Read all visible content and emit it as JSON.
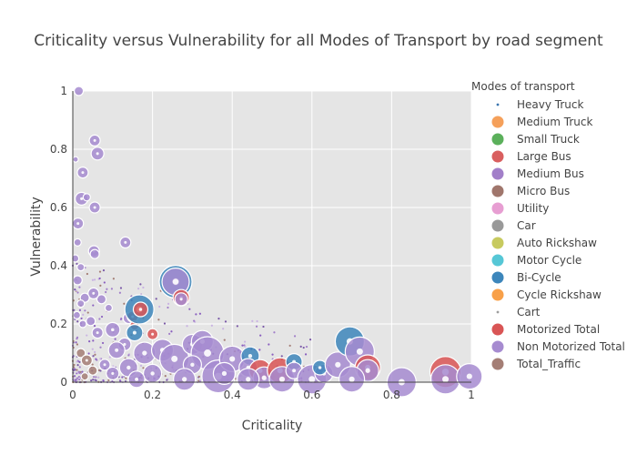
{
  "chart_data": {
    "type": "scatter",
    "title": "Criticality versus Vulnerability for all Modes of Transport by road segment",
    "xlabel": "Criticality",
    "ylabel": "Vulnerability",
    "xlim": [
      0,
      1
    ],
    "ylim": [
      0,
      1
    ],
    "xticks": [
      0,
      0.2,
      0.4,
      0.6,
      0.8,
      1
    ],
    "xtick_labels": [
      "0",
      "0.2",
      "0.4",
      "0.6",
      "0.8",
      "1"
    ],
    "yticks": [
      0,
      0.2,
      0.4,
      0.6,
      0.8,
      1
    ],
    "ytick_labels": [
      "0",
      "0.2",
      "0.4",
      "0.6",
      "0.8",
      "1"
    ],
    "grid": true,
    "legend_title": "Modes of transport",
    "legend_position": "right",
    "series": [
      {
        "name": "Heavy Truck",
        "color": "#3b75af",
        "marker": "dot"
      },
      {
        "name": "Medium Truck",
        "color": "#f5a05a",
        "marker": "circle"
      },
      {
        "name": "Small Truck",
        "color": "#5bb05b",
        "marker": "circle"
      },
      {
        "name": "Large Bus",
        "color": "#d95f5f",
        "marker": "circle"
      },
      {
        "name": "Medium Bus",
        "color": "#a27fc9",
        "marker": "circle"
      },
      {
        "name": "Micro Bus",
        "color": "#a0766c",
        "marker": "circle"
      },
      {
        "name": "Utility",
        "color": "#e79ed2",
        "marker": "circle"
      },
      {
        "name": "Car",
        "color": "#999999",
        "marker": "circle"
      },
      {
        "name": "Auto Rickshaw",
        "color": "#c7ca5f",
        "marker": "circle"
      },
      {
        "name": "Motor Cycle",
        "color": "#56c7d6",
        "marker": "circle"
      },
      {
        "name": "Bi-Cycle",
        "color": "#3d86bb",
        "marker": "circle"
      },
      {
        "name": "Cycle Rickshaw",
        "color": "#f8a049",
        "marker": "circle"
      },
      {
        "name": "Cart",
        "color": "#9e9e9e",
        "marker": "dot"
      },
      {
        "name": "Motorized Total",
        "color": "#d95555",
        "marker": "circle"
      },
      {
        "name": "Non Motorized Total",
        "color": "#a68bd0",
        "marker": "circle"
      },
      {
        "name": "Total_Traffic",
        "color": "#a47e75",
        "marker": "circle"
      }
    ],
    "points": [
      {
        "s": 14,
        "x": 0.015,
        "y": 1.0,
        "r": 5
      },
      {
        "s": 14,
        "x": 0.055,
        "y": 0.83,
        "r": 6
      },
      {
        "s": 14,
        "x": 0.062,
        "y": 0.785,
        "r": 7
      },
      {
        "s": 14,
        "x": 0.025,
        "y": 0.72,
        "r": 6
      },
      {
        "s": 14,
        "x": 0.007,
        "y": 0.765,
        "r": 3
      },
      {
        "s": 14,
        "x": 0.022,
        "y": 0.63,
        "r": 7
      },
      {
        "s": 14,
        "x": 0.035,
        "y": 0.635,
        "r": 4
      },
      {
        "s": 14,
        "x": 0.055,
        "y": 0.6,
        "r": 6
      },
      {
        "s": 14,
        "x": 0.013,
        "y": 0.545,
        "r": 6
      },
      {
        "s": 14,
        "x": 0.132,
        "y": 0.48,
        "r": 6
      },
      {
        "s": 14,
        "x": 0.012,
        "y": 0.48,
        "r": 4
      },
      {
        "s": 14,
        "x": 0.053,
        "y": 0.45,
        "r": 6
      },
      {
        "s": 14,
        "x": 0.055,
        "y": 0.44,
        "r": 5
      },
      {
        "s": 14,
        "x": 0.006,
        "y": 0.425,
        "r": 4
      },
      {
        "s": 14,
        "x": 0.02,
        "y": 0.395,
        "r": 4
      },
      {
        "s": 14,
        "x": 0.012,
        "y": 0.35,
        "r": 5
      },
      {
        "s": 14,
        "x": 0.052,
        "y": 0.305,
        "r": 6
      },
      {
        "s": 14,
        "x": 0.03,
        "y": 0.29,
        "r": 5
      },
      {
        "s": 14,
        "x": 0.072,
        "y": 0.285,
        "r": 5
      },
      {
        "s": 14,
        "x": 0.02,
        "y": 0.27,
        "r": 4
      },
      {
        "s": 14,
        "x": 0.09,
        "y": 0.255,
        "r": 4
      },
      {
        "s": 14,
        "x": 0.01,
        "y": 0.23,
        "r": 4
      },
      {
        "s": 14,
        "x": 0.045,
        "y": 0.21,
        "r": 5
      },
      {
        "s": 14,
        "x": 0.025,
        "y": 0.2,
        "r": 4
      },
      {
        "s": 14,
        "x": 0.1,
        "y": 0.18,
        "r": 8
      },
      {
        "s": 14,
        "x": 0.062,
        "y": 0.17,
        "r": 6
      },
      {
        "s": 14,
        "x": 0.14,
        "y": 0.22,
        "r": 6
      },
      {
        "s": 13,
        "x": 0.15,
        "y": 0.225,
        "r": 6
      },
      {
        "s": 13,
        "x": 0.155,
        "y": 0.195,
        "r": 5
      },
      {
        "s": 10,
        "x": 0.167,
        "y": 0.25,
        "r": 16
      },
      {
        "s": 13,
        "x": 0.17,
        "y": 0.25,
        "r": 8
      },
      {
        "s": 10,
        "x": 0.155,
        "y": 0.17,
        "r": 9
      },
      {
        "s": 13,
        "x": 0.2,
        "y": 0.165,
        "r": 6
      },
      {
        "s": 10,
        "x": 0.258,
        "y": 0.345,
        "r": 18
      },
      {
        "s": 14,
        "x": 0.258,
        "y": 0.345,
        "r": 15
      },
      {
        "s": 13,
        "x": 0.272,
        "y": 0.29,
        "r": 9
      },
      {
        "s": 14,
        "x": 0.272,
        "y": 0.285,
        "r": 7
      },
      {
        "s": 14,
        "x": 0.13,
        "y": 0.13,
        "r": 7
      },
      {
        "s": 14,
        "x": 0.11,
        "y": 0.11,
        "r": 9
      },
      {
        "s": 14,
        "x": 0.18,
        "y": 0.1,
        "r": 12
      },
      {
        "s": 14,
        "x": 0.225,
        "y": 0.11,
        "r": 12
      },
      {
        "s": 14,
        "x": 0.255,
        "y": 0.08,
        "r": 16
      },
      {
        "s": 14,
        "x": 0.3,
        "y": 0.13,
        "r": 11
      },
      {
        "s": 14,
        "x": 0.325,
        "y": 0.14,
        "r": 12
      },
      {
        "s": 14,
        "x": 0.338,
        "y": 0.1,
        "r": 18
      },
      {
        "s": 14,
        "x": 0.3,
        "y": 0.06,
        "r": 10
      },
      {
        "s": 14,
        "x": 0.365,
        "y": 0.02,
        "r": 18
      },
      {
        "s": 14,
        "x": 0.4,
        "y": 0.08,
        "r": 14
      },
      {
        "s": 10,
        "x": 0.445,
        "y": 0.09,
        "r": 10
      },
      {
        "s": 14,
        "x": 0.44,
        "y": 0.05,
        "r": 10
      },
      {
        "s": 13,
        "x": 0.47,
        "y": 0.04,
        "r": 12
      },
      {
        "s": 14,
        "x": 0.48,
        "y": 0.015,
        "r": 12
      },
      {
        "s": 13,
        "x": 0.52,
        "y": 0.04,
        "r": 14
      },
      {
        "s": 14,
        "x": 0.525,
        "y": 0.01,
        "r": 14
      },
      {
        "s": 10,
        "x": 0.555,
        "y": 0.07,
        "r": 9
      },
      {
        "s": 14,
        "x": 0.555,
        "y": 0.04,
        "r": 9
      },
      {
        "s": 14,
        "x": 0.6,
        "y": 0.01,
        "r": 16
      },
      {
        "s": 14,
        "x": 0.63,
        "y": 0.03,
        "r": 10
      },
      {
        "s": 10,
        "x": 0.62,
        "y": 0.05,
        "r": 8
      },
      {
        "s": 14,
        "x": 0.665,
        "y": 0.06,
        "r": 14
      },
      {
        "s": 10,
        "x": 0.695,
        "y": 0.14,
        "r": 16
      },
      {
        "s": 14,
        "x": 0.72,
        "y": 0.105,
        "r": 16
      },
      {
        "s": 13,
        "x": 0.74,
        "y": 0.05,
        "r": 14
      },
      {
        "s": 14,
        "x": 0.74,
        "y": 0.04,
        "r": 12
      },
      {
        "s": 14,
        "x": 0.7,
        "y": 0.01,
        "r": 14
      },
      {
        "s": 14,
        "x": 0.825,
        "y": 0.0,
        "r": 16
      },
      {
        "s": 13,
        "x": 0.935,
        "y": 0.035,
        "r": 17
      },
      {
        "s": 14,
        "x": 0.935,
        "y": 0.01,
        "r": 16
      },
      {
        "s": 14,
        "x": 0.995,
        "y": 0.02,
        "r": 14
      },
      {
        "s": 15,
        "x": 0.02,
        "y": 0.1,
        "r": 5
      },
      {
        "s": 15,
        "x": 0.035,
        "y": 0.075,
        "r": 6
      },
      {
        "s": 15,
        "x": 0.05,
        "y": 0.04,
        "r": 5
      },
      {
        "s": 15,
        "x": 0.03,
        "y": 0.02,
        "r": 4
      },
      {
        "s": 14,
        "x": 0.08,
        "y": 0.06,
        "r": 6
      },
      {
        "s": 14,
        "x": 0.1,
        "y": 0.03,
        "r": 7
      },
      {
        "s": 14,
        "x": 0.14,
        "y": 0.05,
        "r": 10
      },
      {
        "s": 14,
        "x": 0.2,
        "y": 0.03,
        "r": 10
      },
      {
        "s": 14,
        "x": 0.38,
        "y": 0.03,
        "r": 12
      },
      {
        "s": 14,
        "x": 0.44,
        "y": 0.01,
        "r": 12
      },
      {
        "s": 14,
        "x": 0.28,
        "y": 0.01,
        "r": 12
      },
      {
        "s": 14,
        "x": 0.16,
        "y": 0.01,
        "r": 9
      }
    ]
  }
}
